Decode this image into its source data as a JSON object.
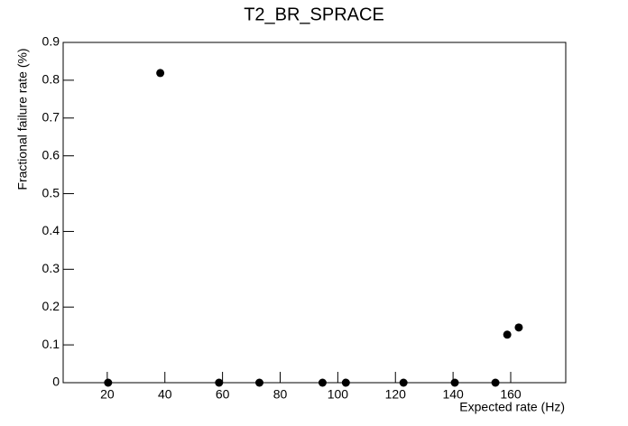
{
  "chart_data": {
    "type": "scatter",
    "title": "T2_BR_SPRACE",
    "x_label": "Expected rate (Hz)",
    "y_label": "Fractional failure rate (%)",
    "x": [
      20.3,
      38.4,
      58.8,
      72.8,
      94.7,
      102.8,
      122.8,
      140.6,
      154.7,
      158.8,
      162.8
    ],
    "values": [
      0,
      0.819,
      0,
      0,
      0,
      0,
      0,
      0,
      0,
      0.127,
      0.146
    ],
    "color": "#000000",
    "xlim": [
      4.7,
      179.1
    ],
    "xticks": [
      20,
      40,
      60,
      80,
      100,
      120,
      140,
      160
    ],
    "ylim": [
      0,
      0.9
    ],
    "yticks": [
      0,
      0.1,
      0.2,
      0.3,
      0.4,
      0.5,
      0.6,
      0.7,
      0.8,
      0.9
    ]
  }
}
